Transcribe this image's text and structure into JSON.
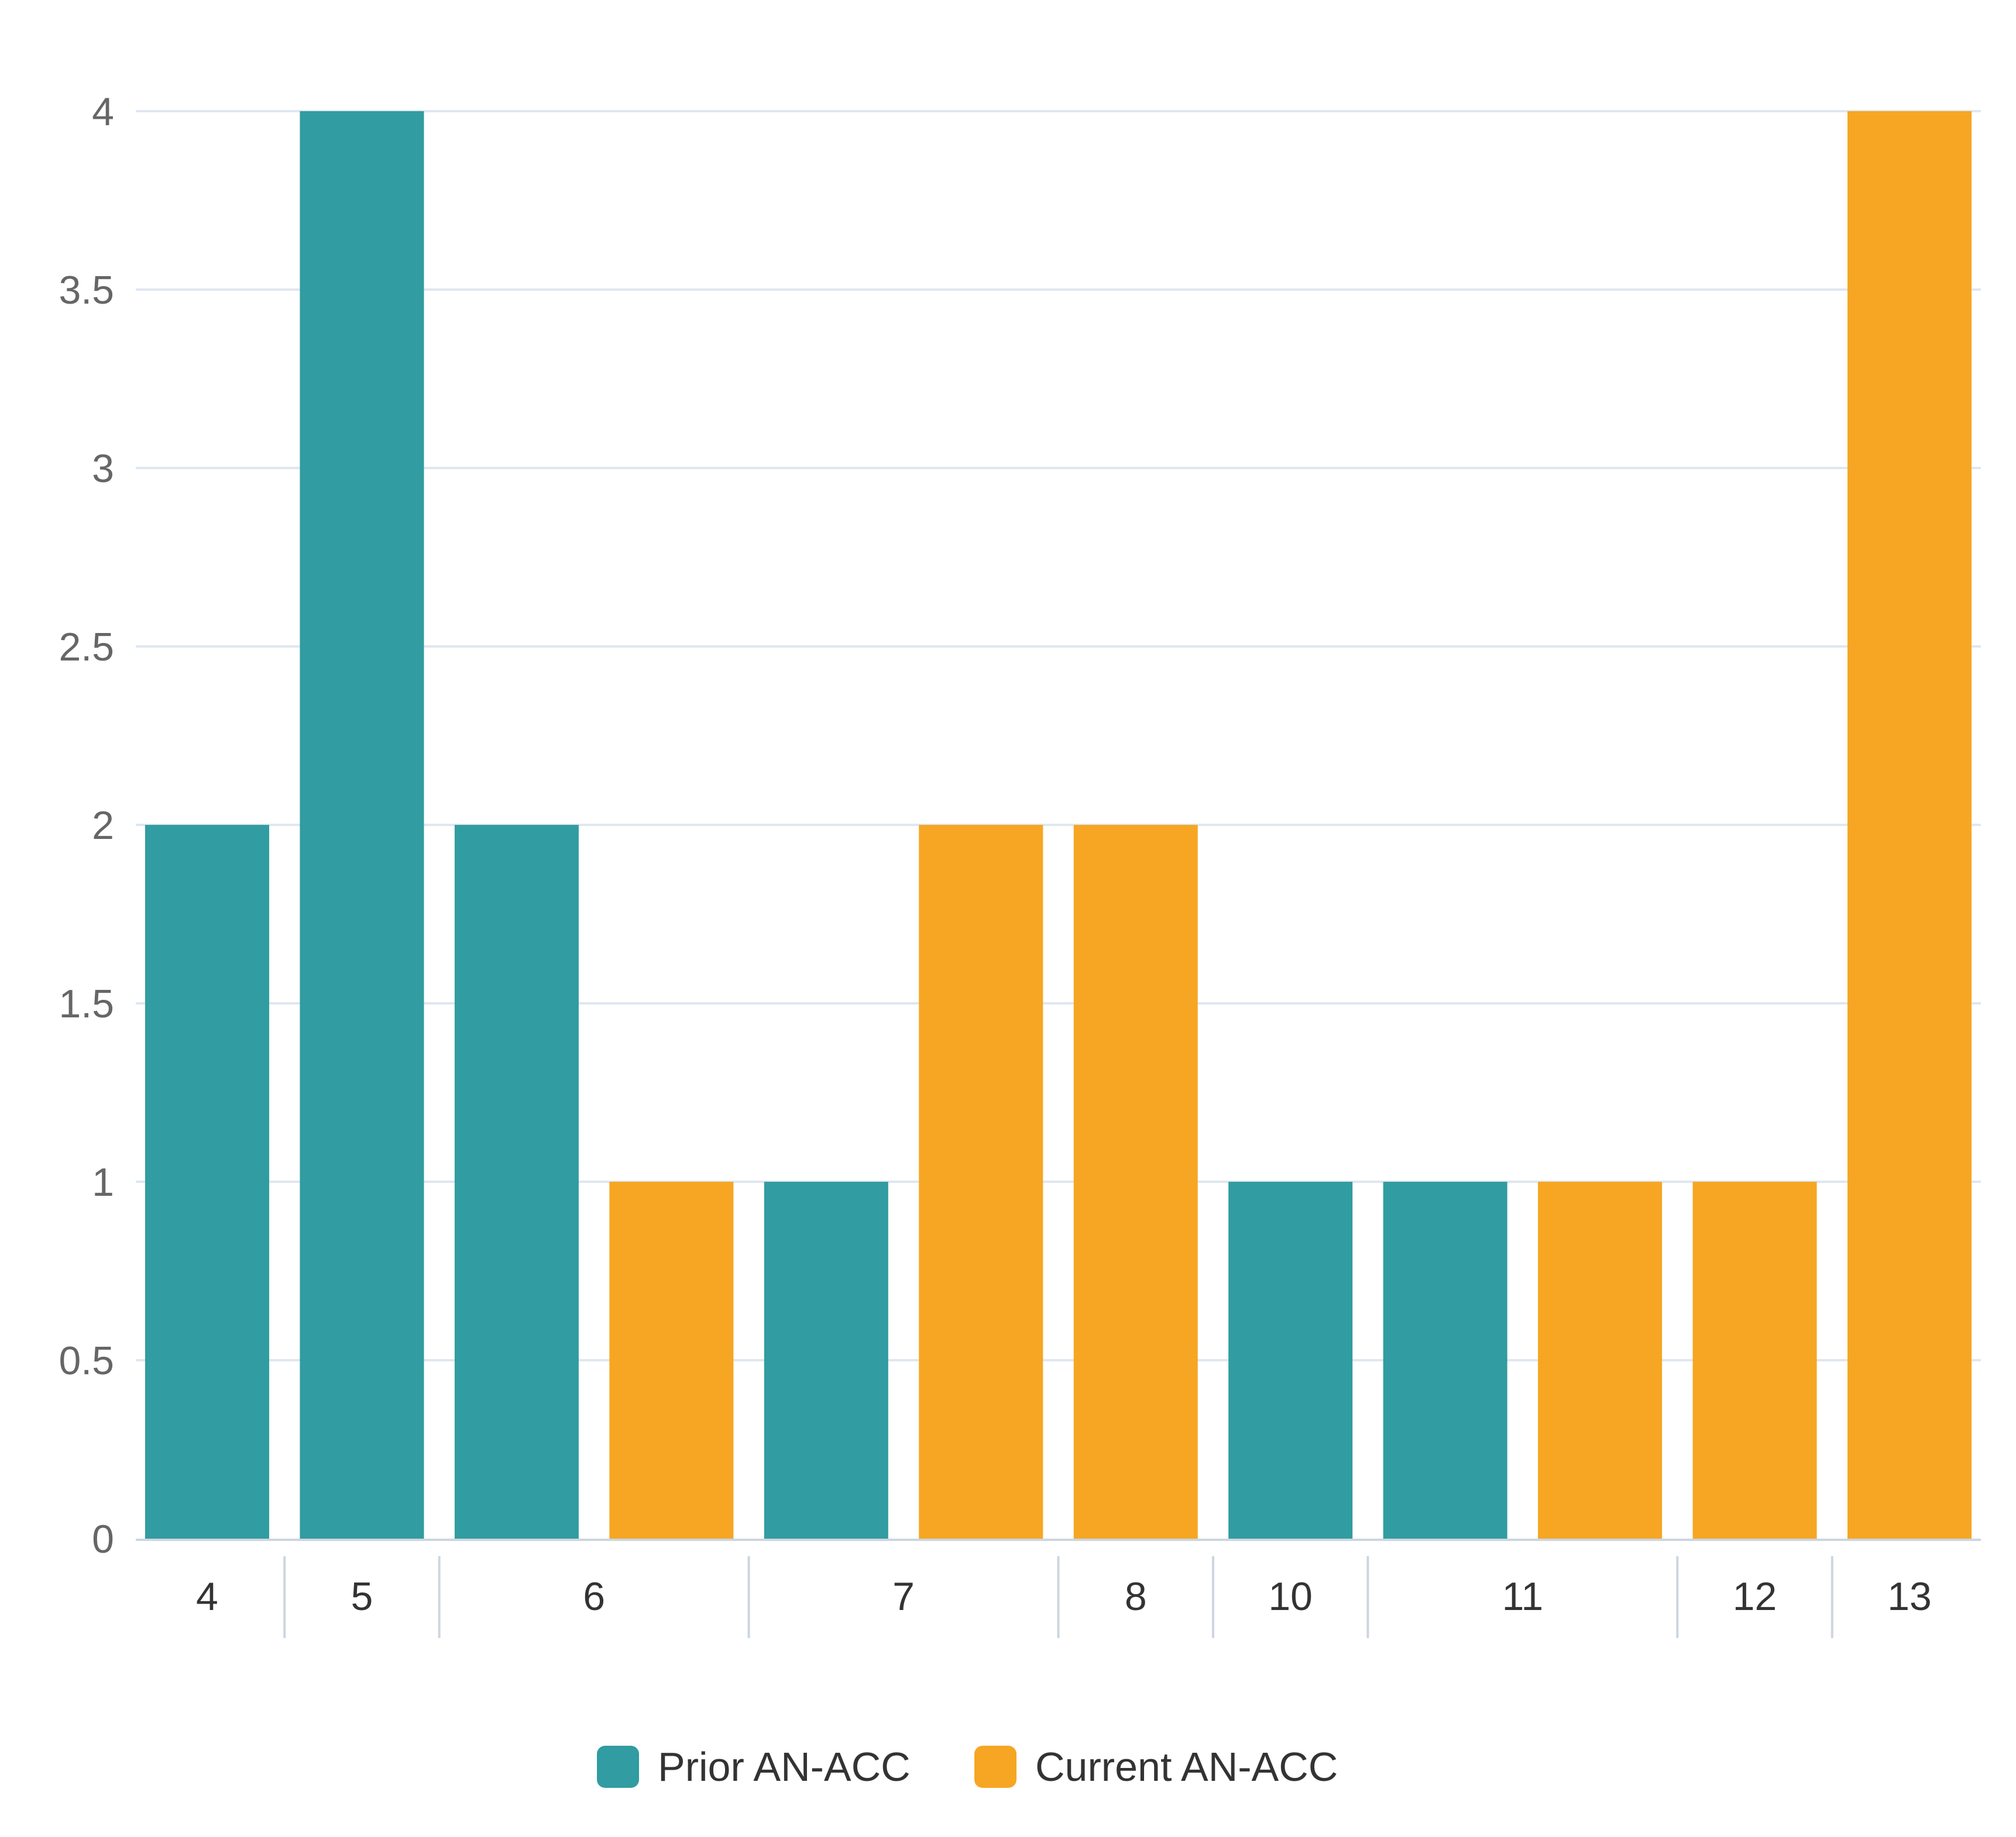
{
  "chart_data": {
    "type": "bar",
    "title": "",
    "xlabel": "",
    "ylabel": "",
    "ylim": [
      0,
      4
    ],
    "y_ticks": [
      "0",
      "0.5",
      "1",
      "1.5",
      "2",
      "2.5",
      "3",
      "3.5",
      "4"
    ],
    "grid": true,
    "legend_position": "bottom-center",
    "categories": [
      "4",
      "5",
      "6",
      "7",
      "8",
      "10",
      "11",
      "12",
      "13"
    ],
    "series": [
      {
        "name": "Prior AN-ACC",
        "color": "#319ca1",
        "values": [
          2,
          4,
          2,
          1,
          null,
          1,
          1,
          null,
          null
        ]
      },
      {
        "name": "Current AN-ACC",
        "color": "#f6a623",
        "values": [
          null,
          null,
          1,
          2,
          2,
          null,
          1,
          1,
          4
        ]
      }
    ]
  }
}
